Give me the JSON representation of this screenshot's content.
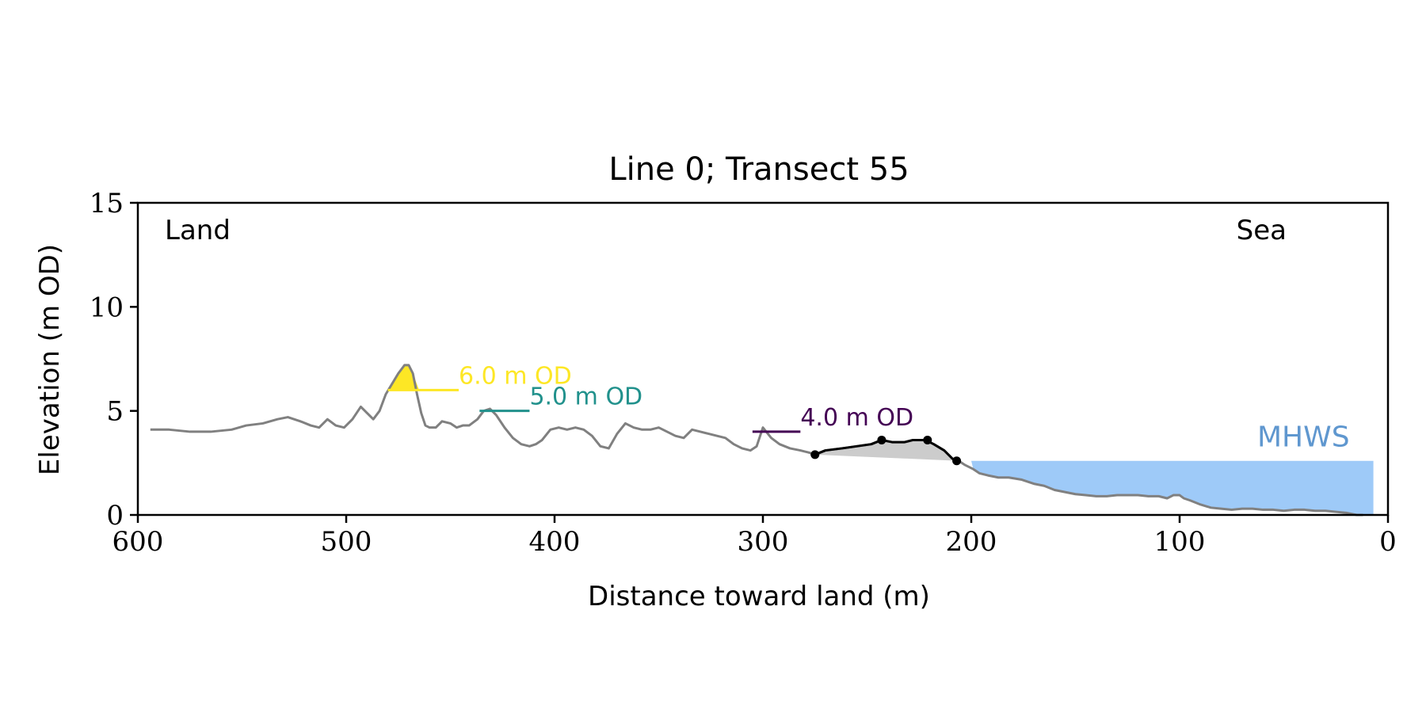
{
  "chart_data": {
    "type": "line",
    "title": "Line 0; Transect 55",
    "xlabel": "Distance toward land (m)",
    "ylabel": "Elevation (m OD)",
    "xlim": [
      600,
      0
    ],
    "ylim": [
      0,
      15
    ],
    "x_ticks": [
      600,
      500,
      400,
      300,
      200,
      100,
      0
    ],
    "y_ticks": [
      0,
      5,
      10,
      15
    ],
    "grid": false,
    "annotations": {
      "left": "Land",
      "right": "Sea"
    },
    "profile": {
      "color": "#808080",
      "x": [
        594,
        585,
        575,
        565,
        555,
        548,
        540,
        533,
        528,
        522,
        517,
        513,
        509,
        505,
        501,
        497,
        493,
        490,
        487,
        484,
        481,
        478,
        475,
        472,
        470,
        468,
        466,
        464,
        462,
        460,
        457,
        454,
        450,
        447,
        444,
        441,
        437,
        434,
        431,
        428,
        424,
        420,
        416,
        412,
        409,
        406,
        402,
        398,
        394,
        390,
        386,
        382,
        378,
        374,
        370,
        366,
        362,
        358,
        354,
        350,
        346,
        342,
        338,
        334,
        330,
        326,
        322,
        318,
        314,
        310,
        306,
        303,
        300,
        296,
        292,
        287,
        282,
        278,
        275,
        270,
        262,
        255,
        248,
        243,
        238,
        232,
        228,
        225,
        222,
        218,
        213,
        209,
        206,
        203,
        199,
        196,
        192,
        187,
        182,
        176,
        170,
        165,
        160,
        155,
        150,
        145,
        140,
        135,
        130,
        125,
        120,
        115,
        110,
        106,
        103,
        100,
        98,
        95,
        90,
        85,
        80,
        75,
        70,
        65,
        60,
        55,
        50,
        45,
        40,
        35,
        30,
        25,
        20,
        15,
        12
      ],
      "y": [
        4.1,
        4.1,
        4.0,
        4.0,
        4.1,
        4.3,
        4.4,
        4.6,
        4.7,
        4.5,
        4.3,
        4.2,
        4.6,
        4.3,
        4.2,
        4.6,
        5.2,
        4.9,
        4.6,
        5.0,
        5.8,
        6.3,
        6.8,
        7.2,
        7.2,
        6.8,
        5.8,
        4.9,
        4.3,
        4.2,
        4.2,
        4.5,
        4.4,
        4.2,
        4.3,
        4.3,
        4.6,
        5.0,
        5.1,
        4.8,
        4.2,
        3.7,
        3.4,
        3.3,
        3.4,
        3.6,
        4.1,
        4.2,
        4.1,
        4.2,
        4.1,
        3.8,
        3.3,
        3.2,
        3.9,
        4.4,
        4.2,
        4.1,
        4.1,
        4.2,
        4.0,
        3.8,
        3.7,
        4.1,
        4.0,
        3.9,
        3.8,
        3.7,
        3.4,
        3.2,
        3.1,
        3.3,
        4.2,
        3.7,
        3.4,
        3.2,
        3.1,
        3.0,
        2.9,
        3.1,
        3.2,
        3.3,
        3.4,
        3.6,
        3.5,
        3.5,
        3.6,
        3.6,
        3.6,
        3.4,
        3.1,
        2.7,
        2.6,
        2.4,
        2.2,
        2.0,
        1.9,
        1.8,
        1.8,
        1.7,
        1.5,
        1.4,
        1.2,
        1.1,
        1.0,
        0.95,
        0.9,
        0.9,
        0.95,
        0.95,
        0.95,
        0.9,
        0.9,
        0.8,
        0.95,
        0.95,
        0.8,
        0.7,
        0.5,
        0.35,
        0.3,
        0.25,
        0.3,
        0.3,
        0.25,
        0.25,
        0.2,
        0.25,
        0.25,
        0.2,
        0.2,
        0.15,
        0.1,
        0.0,
        0.0
      ]
    },
    "dune_segment": {
      "color": "#000000",
      "x": [
        275,
        270,
        262,
        255,
        248,
        243,
        238,
        232,
        228,
        225,
        222,
        218,
        213,
        209,
        206
      ],
      "y": [
        2.9,
        3.1,
        3.2,
        3.3,
        3.4,
        3.6,
        3.5,
        3.5,
        3.6,
        3.6,
        3.6,
        3.4,
        3.1,
        2.7,
        2.6
      ],
      "points": [
        {
          "x": 275,
          "y": 2.9
        },
        {
          "x": 243,
          "y": 3.6
        },
        {
          "x": 221,
          "y": 3.6
        },
        {
          "x": 207,
          "y": 2.6
        }
      ],
      "shaded_area_color": "#cccccc"
    },
    "sea": {
      "label": "MHWS",
      "level": 2.6,
      "x_range": [
        7,
        200
      ],
      "fill_color": "#9ecaf8",
      "label_color": "#5f97cf"
    },
    "levels": [
      {
        "label": "6.0 m OD",
        "level": 6.0,
        "x_range": [
          480,
          446
        ],
        "color": "#fde725"
      },
      {
        "label": "5.0 m OD",
        "level": 5.0,
        "x_range": [
          436,
          412
        ],
        "color": "#21918c"
      },
      {
        "label": "4.0 m OD",
        "level": 4.0,
        "x_range": [
          305,
          282
        ],
        "color": "#440154"
      }
    ]
  }
}
